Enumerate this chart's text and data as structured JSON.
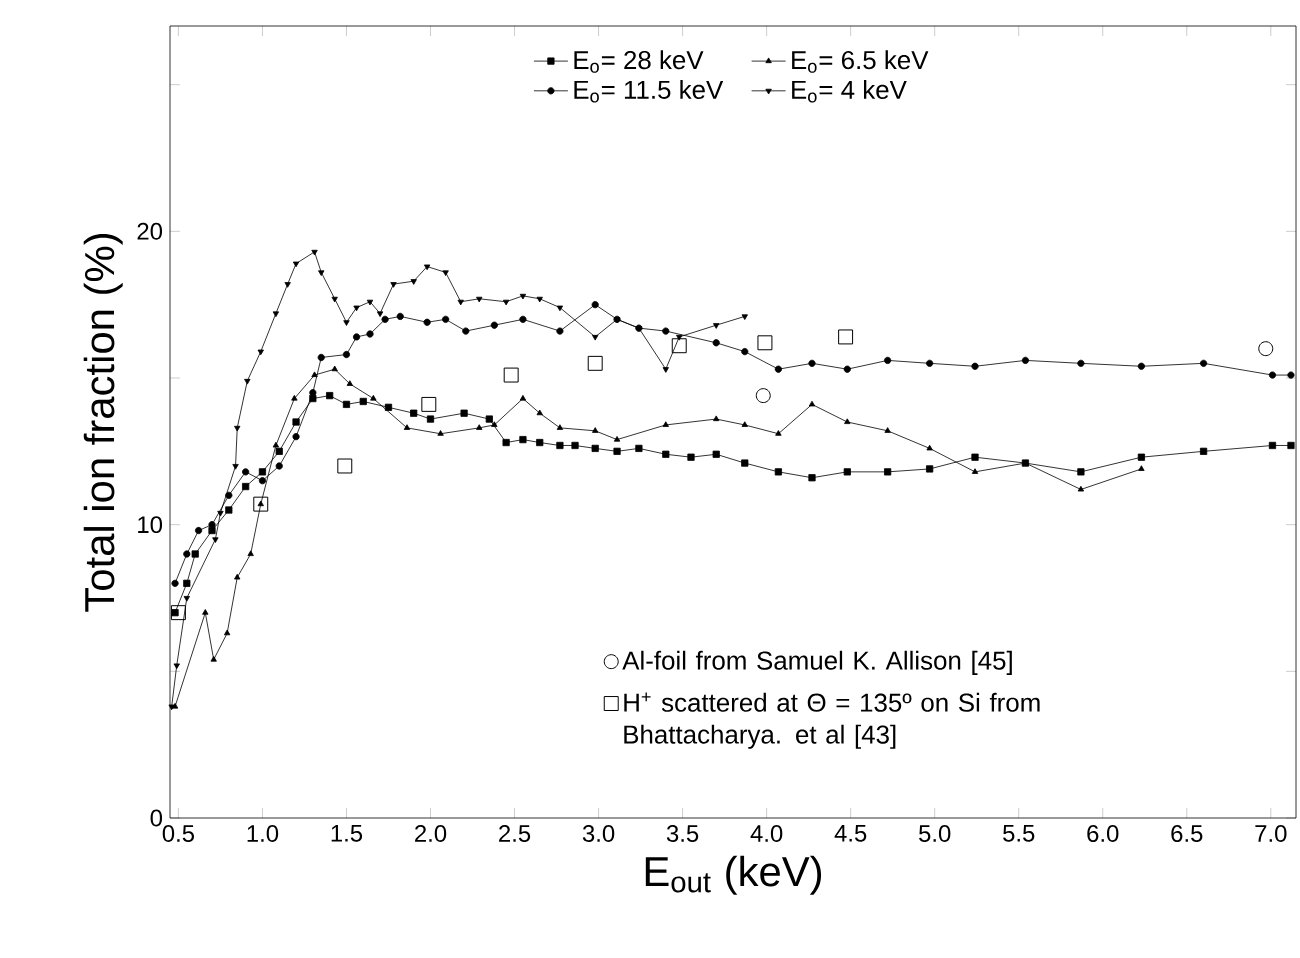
{
  "chart_data": {
    "type": "line",
    "xlabel": "E$_{out}$ (keV)",
    "ylabel": "Total ion fraction (%)",
    "xlim": [
      0.45,
      7.15
    ],
    "ylim": [
      0,
      27
    ],
    "xticks": [
      {
        "value": 0.5,
        "label": "0.5"
      },
      {
        "value": 1.0,
        "label": "1.0"
      },
      {
        "value": 1.5,
        "label": "1.5"
      },
      {
        "value": 2.0,
        "label": "2.0"
      },
      {
        "value": 2.5,
        "label": "2.5"
      },
      {
        "value": 3.0,
        "label": "3.0"
      },
      {
        "value": 3.5,
        "label": "3.5"
      },
      {
        "value": 4.0,
        "label": "4.0"
      },
      {
        "value": 4.5,
        "label": "4.5"
      },
      {
        "value": 5.0,
        "label": "5.0"
      },
      {
        "value": 5.5,
        "label": "5.5"
      },
      {
        "value": 6.0,
        "label": "6.0"
      },
      {
        "value": 6.5,
        "label": "6.5"
      },
      {
        "value": 7.0,
        "label": "7.0"
      }
    ],
    "yticks": [
      0,
      {
        "value": 5,
        "label": null
      },
      10,
      {
        "value": 15,
        "label": null
      },
      20,
      {
        "value": 25,
        "label": null
      }
    ],
    "legend": "top",
    "grid": false,
    "line_style": "solid",
    "series": [
      {
        "name": "E$_{o}$= 28 keV",
        "marker": "square",
        "color": "#000000",
        "x": [
          0.48,
          0.55,
          0.6,
          0.7,
          0.8,
          0.9,
          1.0,
          1.1,
          1.2,
          1.3,
          1.4,
          1.5,
          1.6,
          1.75,
          1.9,
          2.0,
          2.2,
          2.35,
          2.45,
          2.55,
          2.65,
          2.77,
          2.86,
          2.98,
          3.11,
          3.24,
          3.4,
          3.55,
          3.7,
          3.87,
          4.07,
          4.27,
          4.48,
          4.72,
          4.97,
          5.24,
          5.54,
          5.87,
          6.23,
          6.6,
          7.01,
          7.12
        ],
        "values": [
          7.0,
          8.0,
          9.0,
          9.8,
          10.5,
          11.3,
          11.8,
          12.5,
          13.5,
          14.3,
          14.4,
          14.1,
          14.2,
          14.0,
          13.8,
          13.6,
          13.8,
          13.6,
          12.8,
          12.9,
          12.8,
          12.7,
          12.7,
          12.6,
          12.5,
          12.6,
          12.4,
          12.3,
          12.4,
          12.1,
          11.8,
          11.6,
          11.8,
          11.8,
          11.9,
          12.3,
          12.1,
          11.8,
          12.3,
          12.5,
          12.7,
          12.7
        ]
      },
      {
        "name": "E$_{o}$= 6.5 keV",
        "marker": "triangle",
        "color": "#000000",
        "x": [
          0.48,
          0.66,
          0.71,
          0.79,
          0.85,
          0.93,
          0.99,
          1.08,
          1.19,
          1.31,
          1.43,
          1.52,
          1.66,
          1.86,
          2.06,
          2.29,
          2.38,
          2.55,
          2.65,
          2.77,
          2.98,
          3.11,
          3.4,
          3.7,
          3.87,
          4.07,
          4.27,
          4.48,
          4.72,
          4.97,
          5.24,
          5.54,
          5.87,
          6.23
        ],
        "values": [
          3.8,
          7.0,
          5.4,
          6.3,
          8.2,
          9.0,
          10.7,
          12.7,
          14.3,
          15.1,
          15.3,
          14.8,
          14.3,
          13.3,
          13.1,
          13.3,
          13.4,
          14.3,
          13.8,
          13.3,
          13.2,
          12.9,
          13.4,
          13.6,
          13.4,
          13.1,
          14.1,
          13.5,
          13.2,
          12.6,
          11.8,
          12.1,
          11.2,
          11.9
        ]
      },
      {
        "name": "E$_{o}$= 11.5 keV",
        "marker": "circle",
        "color": "#000000",
        "x": [
          0.48,
          0.55,
          0.62,
          0.7,
          0.8,
          0.9,
          1.0,
          1.1,
          1.2,
          1.3,
          1.35,
          1.5,
          1.56,
          1.64,
          1.73,
          1.82,
          1.98,
          2.09,
          2.21,
          2.38,
          2.55,
          2.77,
          2.98,
          3.11,
          3.24,
          3.4,
          3.7,
          3.87,
          4.07,
          4.27,
          4.48,
          4.72,
          4.97,
          5.24,
          5.54,
          5.87,
          6.23,
          6.6,
          7.01,
          7.12
        ],
        "values": [
          8.0,
          9.0,
          9.8,
          10.0,
          11.0,
          11.8,
          11.5,
          12.0,
          13.0,
          14.5,
          15.7,
          15.8,
          16.4,
          16.5,
          17.0,
          17.1,
          16.9,
          17.0,
          16.6,
          16.8,
          17.0,
          16.6,
          17.5,
          17.0,
          16.7,
          16.6,
          16.2,
          15.9,
          15.3,
          15.5,
          15.3,
          15.6,
          15.5,
          15.4,
          15.6,
          15.5,
          15.4,
          15.5,
          15.1,
          15.1
        ]
      },
      {
        "name": "E$_{o}$=  4 keV",
        "marker": "triangle-down",
        "color": "#000000",
        "x": [
          0.46,
          0.49,
          0.55,
          0.72,
          0.75,
          0.84,
          0.85,
          0.91,
          0.99,
          1.08,
          1.15,
          1.2,
          1.31,
          1.35,
          1.43,
          1.5,
          1.56,
          1.64,
          1.7,
          1.78,
          1.9,
          1.98,
          2.09,
          2.18,
          2.29,
          2.45,
          2.55,
          2.65,
          2.77,
          2.98,
          3.11,
          3.24,
          3.4,
          3.48,
          3.7,
          3.87
        ],
        "values": [
          3.8,
          5.2,
          7.5,
          9.5,
          10.4,
          12.0,
          13.3,
          14.9,
          15.9,
          17.2,
          18.2,
          18.9,
          19.3,
          18.6,
          17.7,
          16.9,
          17.4,
          17.6,
          17.2,
          18.2,
          18.3,
          18.8,
          18.6,
          17.6,
          17.7,
          17.6,
          17.8,
          17.7,
          17.4,
          16.4,
          17.0,
          16.7,
          15.3,
          16.4,
          16.8,
          17.1
        ]
      },
      {
        "name": "Al-foil from Samuel K. Allison [45]",
        "type": "scatter",
        "marker": "circle",
        "color": "#000000",
        "x": [
          3.98,
          6.97
        ],
        "values": [
          14.4,
          16.0
        ]
      },
      {
        "name": "H$^{+}$ scattered at Θ = 135º on Si from Bhattacharya. et al [43]",
        "type": "scatter",
        "marker": "square",
        "color": "#000000",
        "x": [
          0.5,
          0.99,
          1.49,
          1.99,
          2.48,
          2.98,
          3.48,
          3.99,
          4.47
        ],
        "values": [
          7.0,
          10.7,
          12.0,
          14.1,
          15.1,
          15.5,
          16.1,
          16.2,
          16.4
        ]
      }
    ]
  }
}
